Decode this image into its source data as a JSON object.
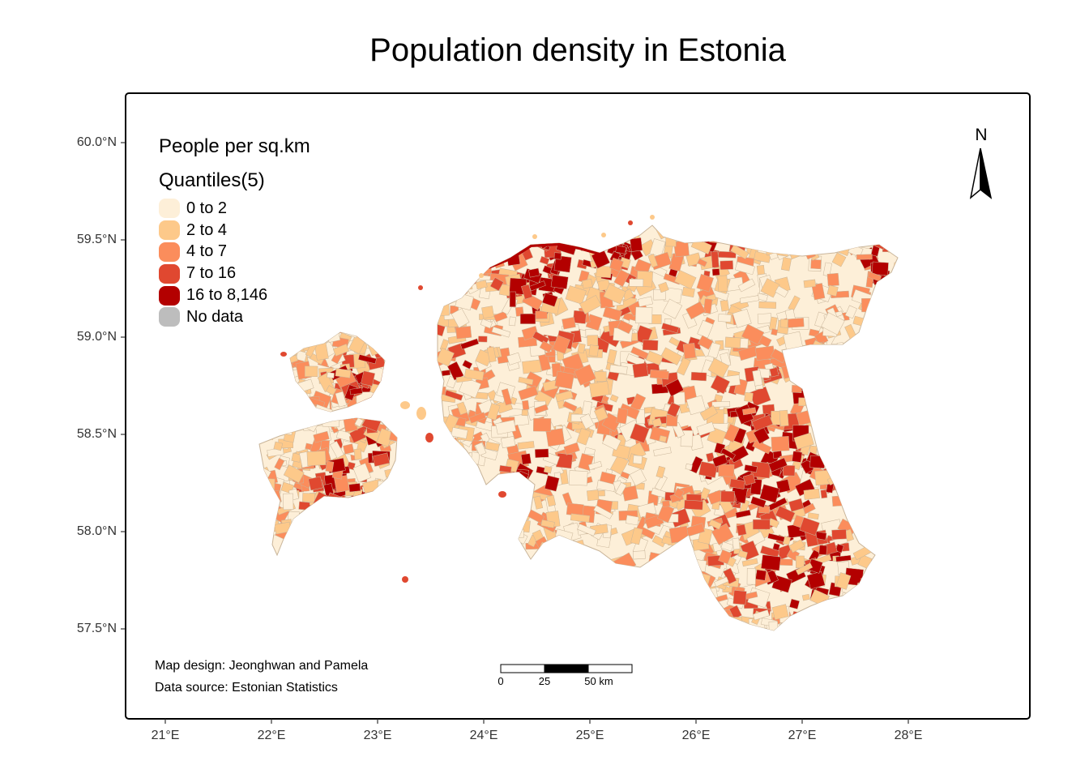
{
  "title": "Population density in Estonia",
  "legend": {
    "title": "People per sq.km",
    "subtitle": "Quantiles(5)",
    "items": [
      {
        "label": "0 to 2",
        "color": "#fdefd8"
      },
      {
        "label": "2 to 4",
        "color": "#fdc98a"
      },
      {
        "label": "4 to 7",
        "color": "#fb8d5c"
      },
      {
        "label": "7 to 16",
        "color": "#e04830"
      },
      {
        "label": "16 to 8,146",
        "color": "#b30000"
      },
      {
        "label": "No data",
        "color": "#bdbdbd"
      }
    ]
  },
  "axes": {
    "lat_labels": [
      "60.0°N",
      "59.5°N",
      "59.0°N",
      "58.5°N",
      "58.0°N",
      "57.5°N"
    ],
    "lon_labels": [
      "21°E",
      "22°E",
      "23°E",
      "24°E",
      "25°E",
      "26°E",
      "27°E",
      "28°E"
    ]
  },
  "north_arrow": {
    "label": "N"
  },
  "scale_bar": {
    "labels": [
      "0",
      "25",
      "50 km"
    ]
  },
  "credits": {
    "design": "Map design: Jeonghwan and Pamela",
    "source": "Data source: Estonian Statistics"
  }
}
